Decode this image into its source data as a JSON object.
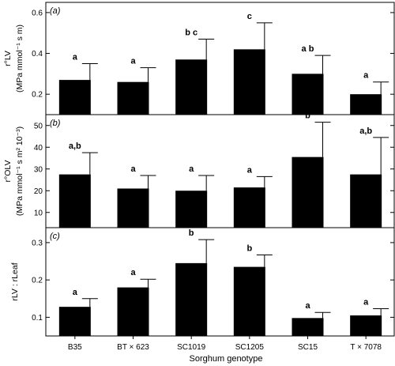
{
  "chart_data": {
    "type": "bar",
    "xlabel": "Sorghum genotype",
    "categories": [
      "B35",
      "BT × 623",
      "SC1019",
      "SC1205",
      "SC15",
      "T × 7078"
    ],
    "panels": [
      {
        "tag": "(a)",
        "ylabel_symbol": "r°LV",
        "ylabel_units": "(MPa mmol⁻¹ s m)",
        "ylim": [
          0.1,
          0.65
        ],
        "yticks": [
          0.2,
          0.4,
          0.6
        ],
        "tick_labels": [
          "0.2",
          "0.4",
          "0.6"
        ],
        "values": [
          0.27,
          0.26,
          0.37,
          0.42,
          0.3,
          0.2
        ],
        "errors": [
          0.08,
          0.07,
          0.1,
          0.13,
          0.09,
          0.06
        ],
        "letters": [
          "a",
          "a",
          "b c",
          "c",
          "a b",
          "a"
        ]
      },
      {
        "tag": "(b)",
        "ylabel_symbol": "r°OLV",
        "ylabel_units": "(MPa mmol⁻¹ s m² 10⁻³)",
        "ylim": [
          3,
          55
        ],
        "yticks": [
          10,
          20,
          30,
          40,
          50
        ],
        "tick_labels": [
          "10",
          "20",
          "30",
          "40",
          "50"
        ],
        "values": [
          27.5,
          21,
          20,
          21.5,
          35.5,
          27.5
        ],
        "errors": [
          10,
          6,
          7,
          5,
          16,
          17
        ],
        "letters": [
          "a,b",
          "a",
          "a",
          "a",
          "b",
          "a,b"
        ]
      },
      {
        "tag": "(c)",
        "ylabel_symbol": "rLV : rLeaf",
        "ylabel_units": "",
        "ylim": [
          0.05,
          0.34
        ],
        "yticks": [
          0.1,
          0.2,
          0.3
        ],
        "tick_labels": [
          "0.1",
          "0.2",
          "0.3"
        ],
        "values": [
          0.128,
          0.18,
          0.245,
          0.235,
          0.098,
          0.105
        ],
        "errors": [
          0.022,
          0.022,
          0.063,
          0.032,
          0.015,
          0.018
        ],
        "letters": [
          "a",
          "a",
          "b",
          "b",
          "a",
          "a"
        ]
      }
    ]
  }
}
